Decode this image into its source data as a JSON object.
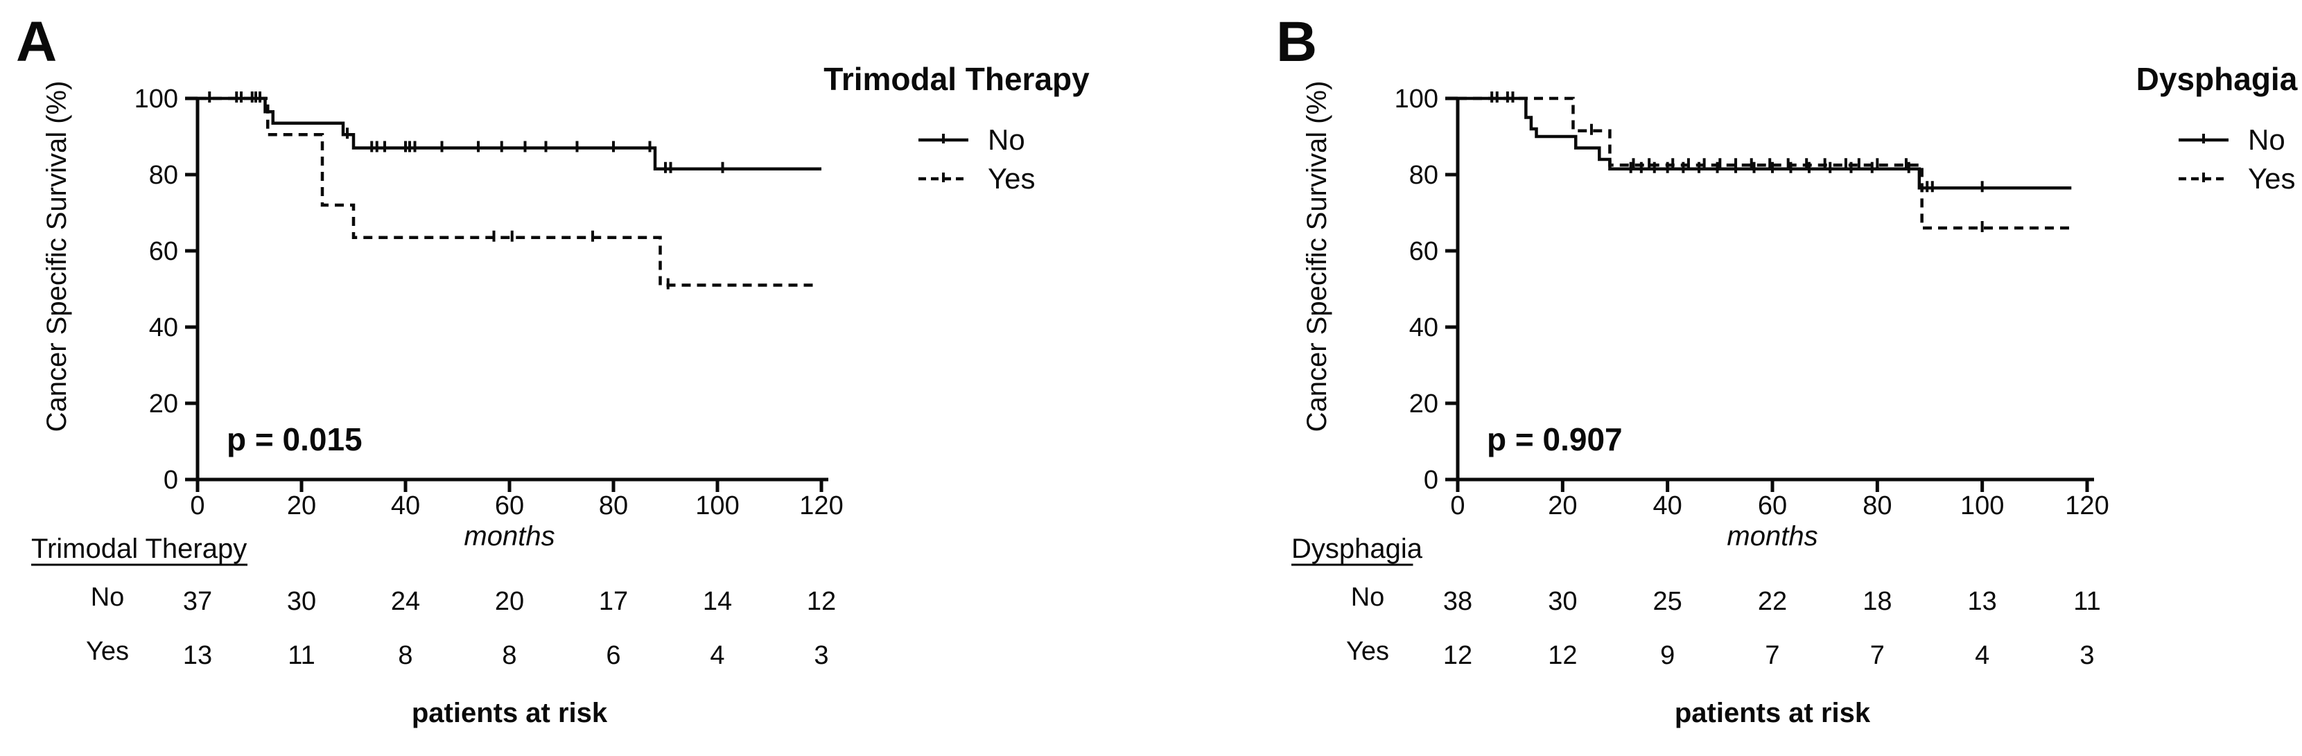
{
  "figure": {
    "background": "#ffffff",
    "ink": "#0a0a0a"
  },
  "chart_data": [
    {
      "type": "line",
      "subtype": "kaplan-meier",
      "panel_label": "A",
      "legend_title": "Trimodal Therapy",
      "legend_position": "right-top",
      "ylabel": "Cancer Specific Survival (%)",
      "xlabel": "months",
      "p_value": "p = 0.015",
      "xlim": [
        0,
        120
      ],
      "ylim": [
        0,
        100
      ],
      "xticks": [
        "0",
        "20",
        "40",
        "60",
        "80",
        "100",
        "120"
      ],
      "yticks": [
        "0",
        "20",
        "40",
        "60",
        "80",
        "100"
      ],
      "grid": false,
      "series": [
        {
          "name": "No",
          "line": "solid",
          "end_month": 120,
          "steps": [
            [
              0,
              100
            ],
            [
              13,
              96.5
            ],
            [
              14.5,
              93.5
            ],
            [
              28,
              90.5
            ],
            [
              30,
              87
            ],
            [
              88,
              81.5
            ]
          ],
          "censor_marks": [
            [
              2.3,
              100
            ],
            [
              7.5,
              100
            ],
            [
              8.4,
              100
            ],
            [
              10.5,
              100
            ],
            [
              11.2,
              100
            ],
            [
              12,
              100
            ],
            [
              28.8,
              90.5
            ],
            [
              33.5,
              87
            ],
            [
              34.5,
              87
            ],
            [
              36,
              87
            ],
            [
              40,
              87
            ],
            [
              40.8,
              87
            ],
            [
              41.8,
              87
            ],
            [
              47,
              87
            ],
            [
              54,
              87
            ],
            [
              58.5,
              87
            ],
            [
              63,
              87
            ],
            [
              67,
              87
            ],
            [
              73,
              87
            ],
            [
              80,
              87
            ],
            [
              87,
              87
            ],
            [
              90,
              81.5
            ],
            [
              91,
              81.5
            ],
            [
              101,
              81.5
            ]
          ]
        },
        {
          "name": "Yes",
          "line": "dashed",
          "end_month": 119,
          "steps": [
            [
              0,
              100
            ],
            [
              13.5,
              90.5
            ],
            [
              24,
              72
            ],
            [
              30,
              63.5
            ],
            [
              89,
              51
            ]
          ],
          "censor_marks": [
            [
              57,
              63.5
            ],
            [
              60.5,
              63.5
            ],
            [
              76,
              63.5
            ],
            [
              90.5,
              51
            ]
          ]
        }
      ],
      "risk_table": {
        "group_label": "Trimodal Therapy",
        "caption": "patients at risk",
        "rows": [
          {
            "label": "No",
            "counts": [
              "37",
              "30",
              "24",
              "20",
              "17",
              "14",
              "12"
            ]
          },
          {
            "label": "Yes",
            "counts": [
              "13",
              "11",
              "8",
              "8",
              "6",
              "4",
              "3"
            ]
          }
        ]
      }
    },
    {
      "type": "line",
      "subtype": "kaplan-meier",
      "panel_label": "B",
      "legend_title": "Dysphagia",
      "legend_position": "right-top",
      "ylabel": "Cancer Specific Survival (%)",
      "xlabel": "months",
      "p_value": "p = 0.907",
      "xlim": [
        0,
        120
      ],
      "ylim": [
        0,
        100
      ],
      "xticks": [
        "0",
        "20",
        "40",
        "60",
        "80",
        "100",
        "120"
      ],
      "yticks": [
        "0",
        "20",
        "40",
        "60",
        "80",
        "100"
      ],
      "grid": false,
      "series": [
        {
          "name": "No",
          "line": "solid",
          "end_month": 117,
          "steps": [
            [
              0,
              100
            ],
            [
              13,
              95
            ],
            [
              14,
              92
            ],
            [
              15,
              90
            ],
            [
              22.5,
              87
            ],
            [
              27,
              84
            ],
            [
              29,
              81.5
            ],
            [
              88,
              76.5
            ]
          ],
          "censor_marks": [
            [
              6.5,
              100
            ],
            [
              7.5,
              100
            ],
            [
              9.5,
              100
            ],
            [
              10.5,
              100
            ],
            [
              33,
              81.5
            ],
            [
              35,
              81.5
            ],
            [
              37.5,
              81.5
            ],
            [
              40,
              81.5
            ],
            [
              43,
              81.5
            ],
            [
              46,
              81.5
            ],
            [
              49.5,
              81.5
            ],
            [
              53,
              81.5
            ],
            [
              56.5,
              81.5
            ],
            [
              60,
              81.5
            ],
            [
              63.5,
              81.5
            ],
            [
              67,
              81.5
            ],
            [
              71,
              81.5
            ],
            [
              75,
              81.5
            ],
            [
              79,
              81.5
            ],
            [
              86,
              81.5
            ],
            [
              89.5,
              76.5
            ],
            [
              90.5,
              76.5
            ],
            [
              100,
              76.5
            ]
          ]
        },
        {
          "name": "Yes",
          "line": "dashed",
          "end_month": 117,
          "steps": [
            [
              0,
              100
            ],
            [
              22,
              91.5
            ],
            [
              29,
              82.5
            ],
            [
              88.5,
              66
            ]
          ],
          "censor_marks": [
            [
              25.5,
              91.5
            ],
            [
              33.5,
              82.5
            ],
            [
              36.5,
              82.5
            ],
            [
              41,
              82.5
            ],
            [
              44,
              82.5
            ],
            [
              47,
              82.5
            ],
            [
              50,
              82.5
            ],
            [
              53,
              82.5
            ],
            [
              56,
              82.5
            ],
            [
              59.5,
              82.5
            ],
            [
              63,
              82.5
            ],
            [
              66.5,
              82.5
            ],
            [
              70,
              82.5
            ],
            [
              74,
              82.5
            ],
            [
              76.5,
              82.5
            ],
            [
              80,
              82.5
            ],
            [
              85.5,
              82.5
            ],
            [
              100,
              66
            ]
          ]
        }
      ],
      "risk_table": {
        "group_label": "Dysphagia",
        "caption": "patients at risk",
        "rows": [
          {
            "label": "No",
            "counts": [
              "38",
              "30",
              "25",
              "22",
              "18",
              "13",
              "11"
            ]
          },
          {
            "label": "Yes",
            "counts": [
              "12",
              "12",
              "9",
              "7",
              "7",
              "4",
              "3"
            ]
          }
        ]
      }
    }
  ]
}
